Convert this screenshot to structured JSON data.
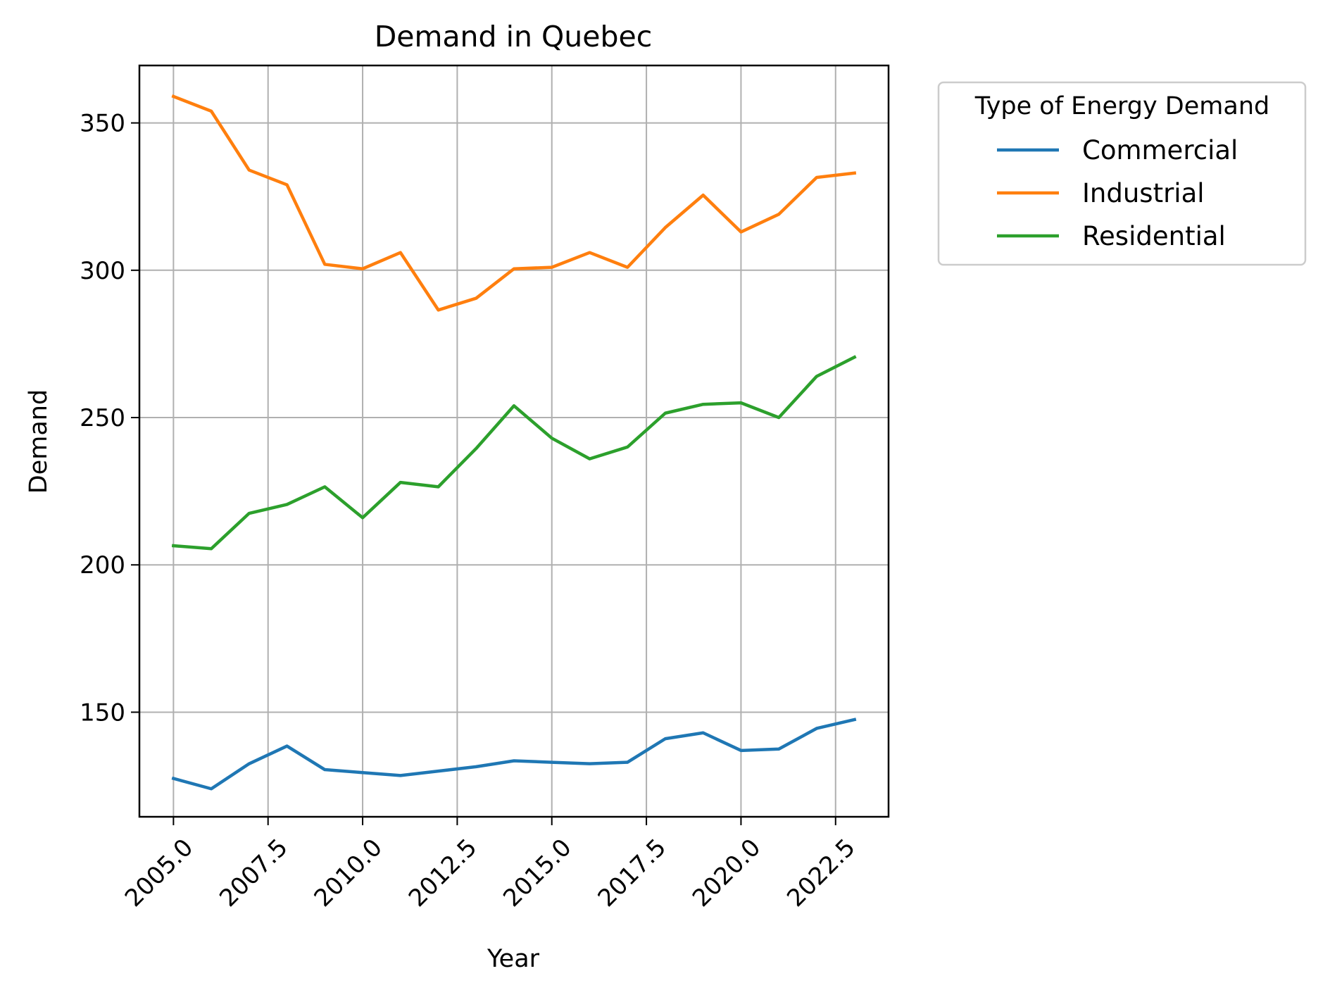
{
  "chart_data": {
    "type": "line",
    "title": "Demand in Quebec",
    "xlabel": "Year",
    "ylabel": "Demand",
    "x": [
      2005,
      2006,
      2007,
      2008,
      2009,
      2010,
      2011,
      2012,
      2013,
      2014,
      2015,
      2016,
      2017,
      2018,
      2019,
      2020,
      2021,
      2022,
      2023
    ],
    "xlim": [
      2004.1,
      2023.9
    ],
    "ylim": [
      114.5,
      369.5
    ],
    "x_ticks": [
      2005.0,
      2007.5,
      2010.0,
      2012.5,
      2015.0,
      2017.5,
      2020.0,
      2022.5
    ],
    "x_tick_labels": [
      "2005.0",
      "2007.5",
      "2010.0",
      "2012.5",
      "2015.0",
      "2017.5",
      "2020.0",
      "2022.5"
    ],
    "y_ticks": [
      150,
      200,
      250,
      300,
      350
    ],
    "y_tick_labels": [
      "150",
      "200",
      "250",
      "300",
      "350"
    ],
    "grid": true,
    "legend": {
      "title": "Type of Energy Demand",
      "placement": "outside-upper-right"
    },
    "series": [
      {
        "name": "Commercial",
        "color": "#1f77b4",
        "values": [
          127.5,
          124.0,
          132.5,
          138.5,
          130.5,
          129.5,
          128.5,
          130.0,
          131.5,
          133.5,
          133.0,
          132.5,
          133.0,
          141.0,
          143.0,
          137.0,
          137.5,
          144.5,
          147.5
        ]
      },
      {
        "name": "Industrial",
        "color": "#ff7f0e",
        "values": [
          359.0,
          354.0,
          334.0,
          329.0,
          302.0,
          300.5,
          306.0,
          286.5,
          290.5,
          300.5,
          301.0,
          306.0,
          301.0,
          314.5,
          325.5,
          313.0,
          319.0,
          331.5,
          333.0
        ]
      },
      {
        "name": "Residential",
        "color": "#2ca02c",
        "values": [
          206.5,
          205.5,
          217.5,
          220.5,
          226.5,
          216.0,
          228.0,
          226.5,
          239.5,
          254.0,
          243.0,
          236.0,
          240.0,
          251.5,
          254.5,
          255.0,
          250.0,
          264.0,
          270.5
        ]
      }
    ]
  }
}
